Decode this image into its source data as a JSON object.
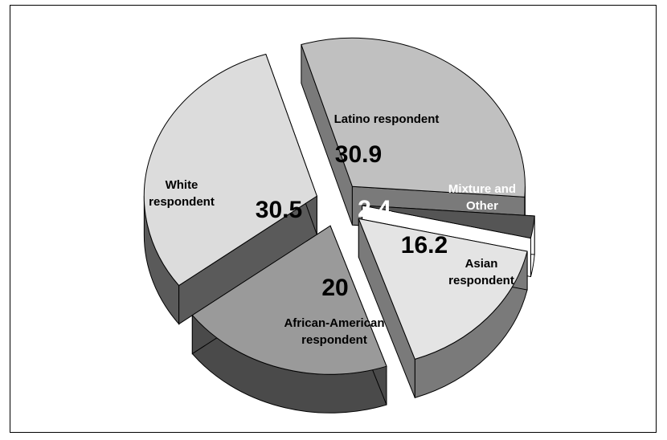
{
  "chart_data": {
    "type": "pie",
    "style": "exploded 3d pie",
    "title": "",
    "slices": [
      {
        "label": "Latino respondent",
        "value": 30.9,
        "top_color": "#c0c0c0",
        "side_color": "#7a7a7a"
      },
      {
        "label": "Mixture and Other",
        "value": 2.4,
        "top_color": "#555555",
        "side_color": "#ffffff"
      },
      {
        "label": "Asian respondent",
        "value": 16.2,
        "top_color": "#e4e4e4",
        "side_color": "#7a7a7a"
      },
      {
        "label": "African-American respondent",
        "value": 20,
        "top_color": "#9a9a9a",
        "side_color": "#4a4a4a"
      },
      {
        "label": "White respondent",
        "value": 30.5,
        "top_color": "#dcdcdc",
        "side_color": "#5a5a5a"
      }
    ]
  }
}
